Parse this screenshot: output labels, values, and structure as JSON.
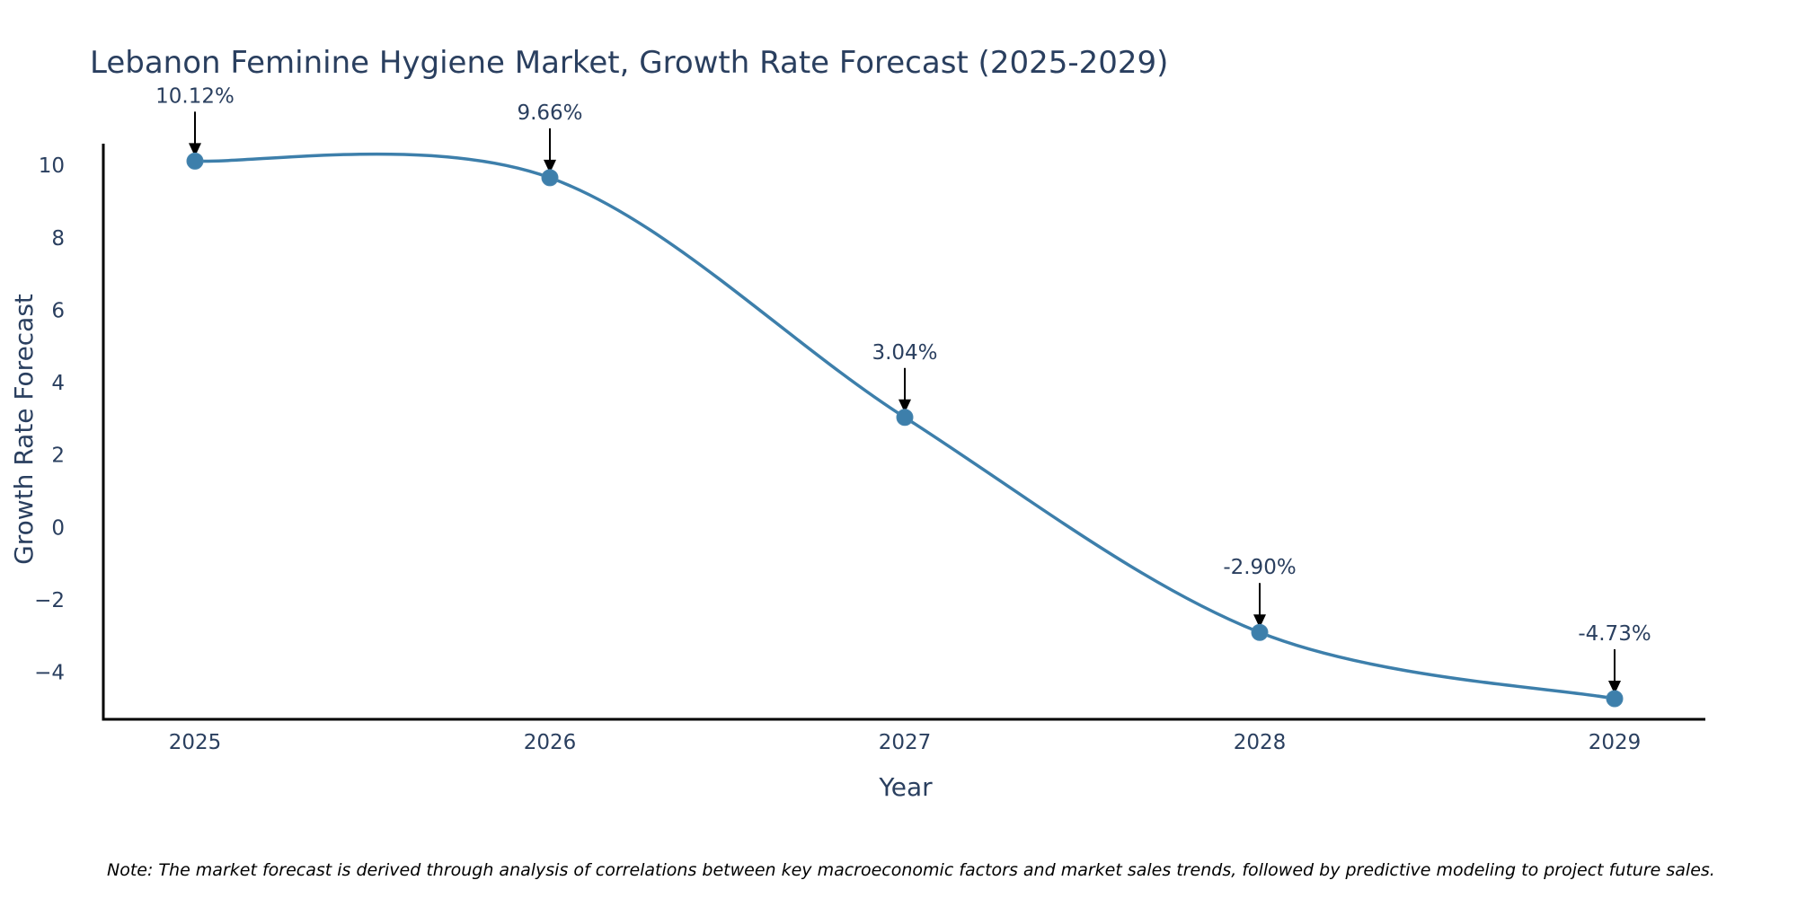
{
  "chart_data": {
    "type": "line",
    "title": "Lebanon Feminine Hygiene Market, Growth Rate Forecast (2025-2029)",
    "xlabel": "Year",
    "ylabel": "Growth Rate Forecast",
    "categories": [
      "2025",
      "2026",
      "2027",
      "2028",
      "2029"
    ],
    "values": [
      10.12,
      9.66,
      3.04,
      -2.9,
      -4.73
    ],
    "data_labels": [
      "10.12%",
      "9.66%",
      "3.04%",
      "-2.90%",
      "-4.73%"
    ],
    "yticks": [
      -4,
      -2,
      0,
      2,
      4,
      6,
      8,
      10
    ],
    "ytick_labels": [
      "−4",
      "−2",
      "0",
      "2",
      "4",
      "6",
      "8",
      "10"
    ],
    "ylim": [
      -5.3,
      10.6
    ],
    "grid": false,
    "line_shape": "spline",
    "series_color": "#3d7fab",
    "axis_color": "#000000",
    "note": "Note: The market forecast is derived through analysis of correlations between key macroeconomic factors and market sales trends, followed by predictive modeling to project future sales."
  }
}
